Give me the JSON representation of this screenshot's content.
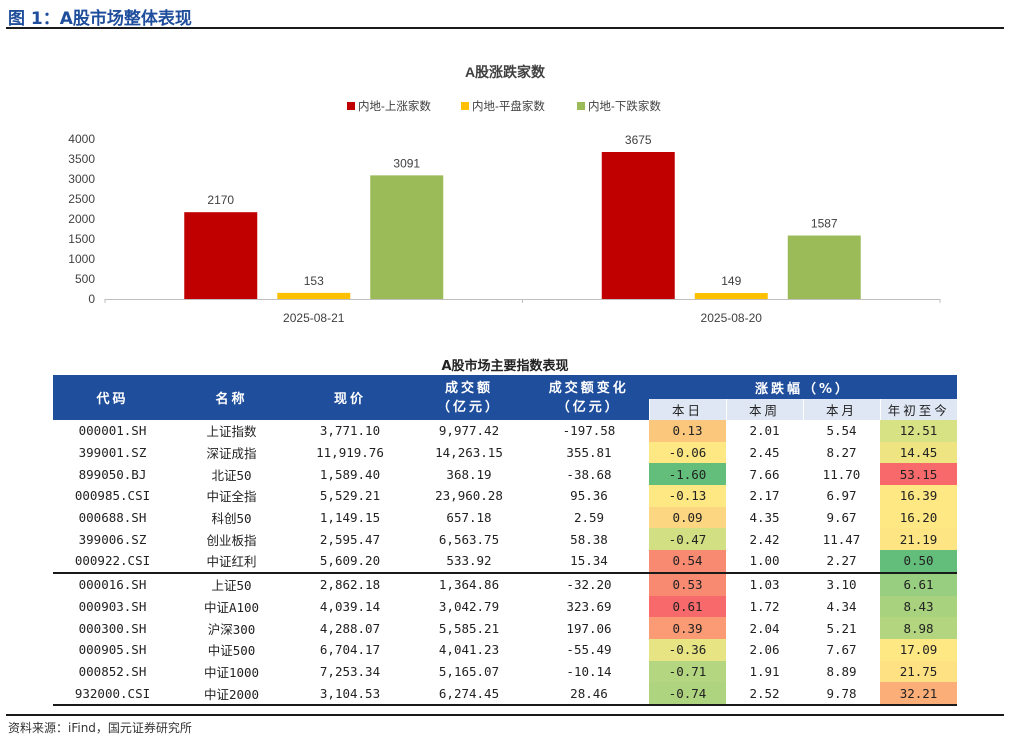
{
  "figure_title": "图 1：A股市场整体表现",
  "source": "资料来源：iFind，国元证券研究所",
  "chart_data": {
    "type": "bar",
    "title": "A股涨跌家数",
    "categories": [
      "2025-08-21",
      "2025-08-20"
    ],
    "series": [
      {
        "name": "内地-上涨家数",
        "color": "#c00000",
        "values": [
          2170,
          3675
        ]
      },
      {
        "name": "内地-平盘家数",
        "color": "#ffc000",
        "values": [
          153,
          149
        ]
      },
      {
        "name": "内地-下跌家数",
        "color": "#9bbb59",
        "values": [
          3091,
          1587
        ]
      }
    ],
    "yticks": [
      0,
      500,
      1000,
      1500,
      2000,
      2500,
      3000,
      3500,
      4000
    ],
    "ylim": [
      0,
      4000
    ],
    "legend": "top",
    "grid": false,
    "data_labels": true
  },
  "table": {
    "title": "A股市场主要指数表现",
    "headers": {
      "code": "代码",
      "name": "名称",
      "price": "现价",
      "turnover": "成交额\n（亿元）",
      "turnover_change": "成交额变化\n（亿元）",
      "change_group": "涨跌幅（%）",
      "day": "本日",
      "week": "本周",
      "month": "本月",
      "ytd": "年初至今"
    },
    "rows": [
      {
        "code": "000001.SH",
        "name": "上证指数",
        "price": "3,771.10",
        "turnover": "9,977.42",
        "turnover_change": "-197.58",
        "day": "0.13",
        "week": "2.01",
        "month": "5.54",
        "ytd": "12.51",
        "day_color": "#fbc77c",
        "ytd_color": "#d6e283"
      },
      {
        "code": "399001.SZ",
        "name": "深证成指",
        "price": "11,919.76",
        "turnover": "14,263.15",
        "turnover_change": "355.81",
        "day": "-0.06",
        "week": "2.45",
        "month": "8.27",
        "ytd": "14.45",
        "day_color": "#fee883",
        "ytd_color": "#eee582"
      },
      {
        "code": "899050.BJ",
        "name": "北证50",
        "price": "1,589.40",
        "turnover": "368.19",
        "turnover_change": "-38.68",
        "day": "-1.60",
        "week": "7.66",
        "month": "11.70",
        "ytd": "53.15",
        "day_color": "#63be7b",
        "ytd_color": "#f8696b"
      },
      {
        "code": "000985.CSI",
        "name": "中证全指",
        "price": "5,529.21",
        "turnover": "23,960.28",
        "turnover_change": "95.36",
        "day": "-0.13",
        "week": "2.17",
        "month": "6.97",
        "ytd": "16.39",
        "day_color": "#fee883",
        "ytd_color": "#fee883"
      },
      {
        "code": "000688.SH",
        "name": "科创50",
        "price": "1,149.15",
        "turnover": "657.18",
        "turnover_change": "2.59",
        "day": "0.09",
        "week": "4.35",
        "month": "9.67",
        "ytd": "16.20",
        "day_color": "#fcd680",
        "ytd_color": "#fee883"
      },
      {
        "code": "399006.SZ",
        "name": "创业板指",
        "price": "2,595.47",
        "turnover": "6,563.75",
        "turnover_change": "58.38",
        "day": "-0.47",
        "week": "2.42",
        "month": "11.47",
        "ytd": "21.19",
        "day_color": "#d2df82",
        "ytd_color": "#fde583"
      },
      {
        "code": "000922.CSI",
        "name": "中证红利",
        "price": "5,609.20",
        "turnover": "533.92",
        "turnover_change": "15.34",
        "day": "0.54",
        "week": "1.00",
        "month": "2.27",
        "ytd": "0.50",
        "day_color": "#f98a72",
        "ytd_color": "#63be7b"
      },
      {
        "code": "000016.SH",
        "name": "上证50",
        "price": "2,862.18",
        "turnover": "1,364.86",
        "turnover_change": "-32.20",
        "day": "0.53",
        "week": "1.03",
        "month": "3.10",
        "ytd": "6.61",
        "day_color": "#f98a72",
        "ytd_color": "#98ce7f"
      },
      {
        "code": "000903.SH",
        "name": "中证A100",
        "price": "4,039.14",
        "turnover": "3,042.79",
        "turnover_change": "323.69",
        "day": "0.61",
        "week": "1.72",
        "month": "4.34",
        "ytd": "8.43",
        "day_color": "#f8696b",
        "ytd_color": "#a9d27f"
      },
      {
        "code": "000300.SH",
        "name": "沪深300",
        "price": "4,288.07",
        "turnover": "5,585.21",
        "turnover_change": "197.06",
        "day": "0.39",
        "week": "2.04",
        "month": "5.21",
        "ytd": "8.98",
        "day_color": "#fa9b75",
        "ytd_color": "#b3d580"
      },
      {
        "code": "000905.SH",
        "name": "中证500",
        "price": "6,704.17",
        "turnover": "4,041.23",
        "turnover_change": "-55.49",
        "day": "-0.36",
        "week": "2.06",
        "month": "7.67",
        "ytd": "17.09",
        "day_color": "#e6e483",
        "ytd_color": "#fee883"
      },
      {
        "code": "000852.SH",
        "name": "中证1000",
        "price": "7,253.34",
        "turnover": "5,165.07",
        "turnover_change": "-10.14",
        "day": "-0.71",
        "week": "1.91",
        "month": "8.89",
        "ytd": "21.75",
        "day_color": "#b4d680",
        "ytd_color": "#fde183"
      },
      {
        "code": "932000.CSI",
        "name": "中证2000",
        "price": "3,104.53",
        "turnover": "6,274.45",
        "turnover_change": "28.46",
        "day": "-0.74",
        "week": "2.52",
        "month": "9.78",
        "ytd": "32.21",
        "day_color": "#afd47f",
        "ytd_color": "#fbae78"
      }
    ]
  }
}
